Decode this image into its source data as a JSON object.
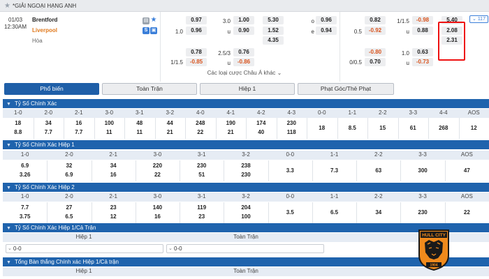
{
  "league": {
    "name": "*GIẢI NGOẠI HẠNG ANH"
  },
  "match": {
    "date": "01/03",
    "time": "12:30AM",
    "home": "Brentford",
    "away": "Liverpool",
    "draw": "Hòa",
    "more_count": "117",
    "ft_hdp": {
      "home_line": "",
      "away_line": "1.0",
      "home": "0.97",
      "away": "0.96"
    },
    "ft_ou": {
      "line": "3.0",
      "under_label": "u",
      "over": "1.00",
      "under": "0.90"
    },
    "ft_1x2": {
      "home": "5.30",
      "away": "1.52",
      "draw": "4.35"
    },
    "ft_oe": {
      "o_label": "o",
      "e_label": "e",
      "o": "0.96",
      "e": "0.94"
    },
    "h1_hdp": {
      "away_line": "0.5",
      "home": "0.82",
      "away": "-0.92"
    },
    "h1_ou": {
      "line": "1/1.5",
      "under_label": "u",
      "over": "-0.98",
      "under": "0.88"
    },
    "h1_1x2": {
      "home": "5.40",
      "away": "2.08",
      "draw": "2.31"
    },
    "alt_ft_hdp": {
      "line": "1/1.5",
      "home": "0.78",
      "away": "-0.85"
    },
    "alt_ft_ou": {
      "line": "2.5/3",
      "under_label": "u",
      "over": "0.76",
      "under": "-0.86"
    },
    "alt_h1_hdp": {
      "line": "0/0.5",
      "home": "-0.80",
      "away": "0.70"
    },
    "alt_h1_ou": {
      "line": "1.0",
      "under_label": "u",
      "over": "0.63",
      "under": "-0.73"
    },
    "asian_more": "Các loại cược Châu Á khác"
  },
  "tabs": [
    "Phổ biến",
    "Toàn Trận",
    "Hiệp 1",
    "Phạt Góc/Thẻ Phạt"
  ],
  "cs_full": {
    "title": "Tỷ Số Chính Xác",
    "headers": [
      "1-0",
      "2-0",
      "2-1",
      "3-0",
      "3-1",
      "3-2",
      "4-0",
      "4-1",
      "4-2",
      "4-3",
      "0-0",
      "1-1",
      "2-2",
      "3-3",
      "4-4",
      "AOS"
    ],
    "home": [
      "18",
      "34",
      "16",
      "100",
      "48",
      "44",
      "248",
      "190",
      "174",
      "230"
    ],
    "away": [
      "8.8",
      "7.7",
      "7.7",
      "11",
      "11",
      "21",
      "22",
      "21",
      "40",
      "118"
    ],
    "mid": [
      "18",
      "8.5",
      "15",
      "61",
      "268",
      "12"
    ]
  },
  "cs_h1": {
    "title": "Tỷ Số Chính Xác Hiệp 1",
    "headers": [
      "1-0",
      "2-0",
      "2-1",
      "3-0",
      "3-1",
      "3-2",
      "0-0",
      "1-1",
      "2-2",
      "3-3",
      "AOS"
    ],
    "home": [
      "6.9",
      "32",
      "34",
      "220",
      "230",
      "238"
    ],
    "away": [
      "3.26",
      "6.9",
      "16",
      "22",
      "51",
      "230"
    ],
    "mid": [
      "3.3",
      "7.3",
      "63",
      "300",
      "47"
    ]
  },
  "cs_h2": {
    "title": "Tỷ Số Chính Xác Hiệp 2",
    "headers": [
      "1-0",
      "2-0",
      "2-1",
      "3-0",
      "3-1",
      "3-2",
      "0-0",
      "1-1",
      "2-2",
      "3-3",
      "AOS"
    ],
    "home": [
      "7.7",
      "27",
      "23",
      "140",
      "119",
      "204"
    ],
    "away": [
      "3.75",
      "6.5",
      "12",
      "16",
      "23",
      "100"
    ],
    "mid": [
      "3.5",
      "6.5",
      "34",
      "230",
      "22"
    ]
  },
  "htft": {
    "title": "Tỷ Số Chính Xác Hiệp 1/Cả Trận",
    "col1": "Hiệp 1",
    "col2": "Toàn Trận",
    "sel1": "0-0",
    "sel2": "0-0"
  },
  "total": {
    "title": "Tổng Bàn thắng Chính xác Hiệp 1/Cả trận",
    "col1": "Hiệp 1",
    "col2": "Toàn Trận"
  },
  "logo": {
    "text": "HULL CITY",
    "year": "1904"
  },
  "colors": {
    "header_blue": "#1f63ad",
    "accent_orange": "#e07a1e",
    "negative": "#d9541e",
    "highlight_red": "#ee1111"
  }
}
